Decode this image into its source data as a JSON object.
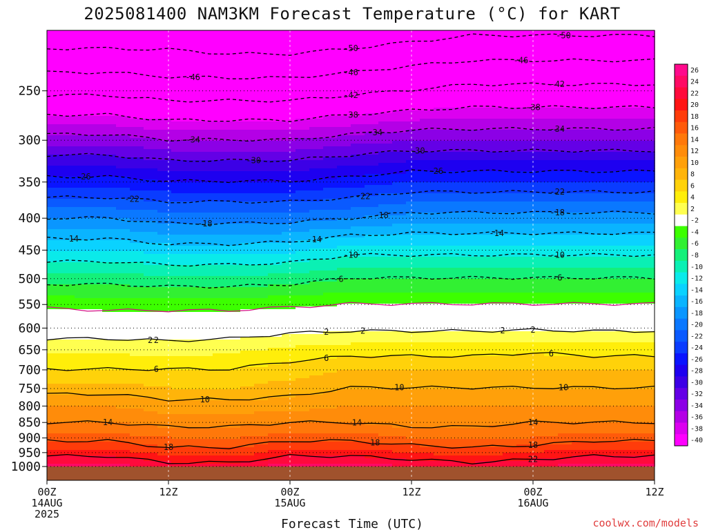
{
  "chart_data": {
    "type": "heatmap",
    "title": "2025081400 NAM3KM Forecast Temperature (°C) for KART",
    "xlabel": "Forecast Time (UTC)",
    "ylabel": "",
    "credit": "coolwx.com/models",
    "x_ticks": [
      {
        "hour": 0,
        "line1": "00Z",
        "line2": "14AUG",
        "line3": "2025"
      },
      {
        "hour": 12,
        "line1": "12Z",
        "line2": "",
        "line3": ""
      },
      {
        "hour": 24,
        "line1": "00Z",
        "line2": "15AUG",
        "line3": ""
      },
      {
        "hour": 36,
        "line1": "12Z",
        "line2": "",
        "line3": ""
      },
      {
        "hour": 48,
        "line1": "00Z",
        "line2": "16AUG",
        "line3": ""
      },
      {
        "hour": 60,
        "line1": "12Z",
        "line2": "",
        "line3": ""
      }
    ],
    "xlim_hours": [
      0,
      60
    ],
    "y_axis": "pressure (hPa), log scale, inverted",
    "ylim": [
      1000,
      200
    ],
    "y_ticks": [
      250,
      300,
      350,
      400,
      450,
      500,
      550,
      600,
      650,
      700,
      750,
      800,
      850,
      900,
      950,
      1000
    ],
    "grid": true,
    "colorbar_labels": [
      26,
      24,
      22,
      20,
      18,
      16,
      14,
      12,
      10,
      8,
      6,
      4,
      2,
      -2,
      -4,
      -6,
      -8,
      -10,
      -12,
      -14,
      -16,
      -18,
      -20,
      -22,
      -24,
      -26,
      -28,
      -30,
      -32,
      -34,
      -36,
      -38,
      -40
    ],
    "colorbar_colors": [
      "#ff0a8c",
      "#ff0a64",
      "#ff0a3c",
      "#ff1414",
      "#ff3c0a",
      "#ff5a0a",
      "#ff780a",
      "#ff8c0a",
      "#ffa00a",
      "#ffb40a",
      "#ffd20a",
      "#ffee0a",
      "#ffff50",
      "#ffffff",
      "#3cff00",
      "#32f032",
      "#14f07a",
      "#0af0b4",
      "#0aeaea",
      "#0ad2ff",
      "#0ab4ff",
      "#0a96ff",
      "#0a78ff",
      "#0a5aff",
      "#0a3cff",
      "#0a14ff",
      "#1e00f0",
      "#3c00e6",
      "#6400e6",
      "#8c00e6",
      "#b400e6",
      "#dc00f0",
      "#ff00ff"
    ],
    "levels": [
      {
        "p": 1000,
        "t": [
          25,
          25,
          23,
          23,
          25,
          25,
          24,
          23,
          24,
          25,
          25
        ]
      },
      {
        "p": 950,
        "t": [
          21,
          21,
          19,
          19,
          21,
          21,
          20,
          19,
          20,
          21,
          21
        ]
      },
      {
        "p": 900,
        "t": [
          17,
          17,
          16,
          16,
          17,
          17,
          16,
          16,
          16,
          17,
          17
        ]
      },
      {
        "p": 850,
        "t": [
          14,
          14,
          13,
          13,
          14,
          14,
          13,
          13,
          14,
          14,
          14
        ]
      },
      {
        "p": 800,
        "t": [
          12,
          12,
          11,
          11,
          11,
          12,
          12,
          12,
          12,
          12,
          12
        ]
      },
      {
        "p": 750,
        "t": [
          9,
          9,
          8,
          8,
          9,
          10,
          10,
          10,
          10,
          10,
          10
        ]
      },
      {
        "p": 700,
        "t": [
          6,
          6,
          6,
          6,
          7,
          8,
          8,
          8,
          8,
          8,
          8
        ]
      },
      {
        "p": 650,
        "t": [
          3.5,
          3.5,
          3,
          3.5,
          4.5,
          5,
          5,
          5,
          5.5,
          5,
          5
        ]
      },
      {
        "p": 600,
        "t": [
          0.5,
          0.5,
          0.5,
          0.5,
          1,
          1.5,
          1.5,
          1.5,
          1.5,
          1.5,
          1.5
        ]
      },
      {
        "p": 550,
        "t": [
          -2.5,
          -3,
          -3,
          -3,
          -2.5,
          -2,
          -2,
          -2,
          -2,
          -2,
          -2
        ]
      },
      {
        "p": 500,
        "t": [
          -7,
          -7,
          -7.5,
          -7.5,
          -7,
          -6,
          -6,
          -6,
          -6,
          -6,
          -6
        ]
      },
      {
        "p": 450,
        "t": [
          -12,
          -12,
          -13,
          -13,
          -12.5,
          -11,
          -11,
          -11,
          -11,
          -11,
          -11
        ]
      },
      {
        "p": 400,
        "t": [
          -18,
          -18,
          -19,
          -19,
          -19,
          -18,
          -17,
          -17,
          -17,
          -17,
          -17
        ]
      },
      {
        "p": 350,
        "t": [
          -25,
          -25,
          -26,
          -26,
          -26,
          -25,
          -24,
          -24,
          -24,
          -24,
          -24
        ]
      },
      {
        "p": 300,
        "t": [
          -33,
          -33,
          -34,
          -34,
          -34,
          -33,
          -32,
          -32,
          -32,
          -32,
          -32
        ]
      },
      {
        "p": 250,
        "t": [
          -43,
          -43,
          -44,
          -44,
          -44,
          -43,
          -42,
          -41,
          -41,
          -41,
          -41
        ]
      },
      {
        "p": 200,
        "t": [
          -53,
          -53,
          -53,
          -54,
          -54,
          -53,
          -52,
          -51,
          -51,
          -51,
          -51
        ]
      }
    ],
    "contour_labels": [
      "-54",
      "-50",
      "-50",
      "-46",
      "-46",
      "-46",
      "-42",
      "-42",
      "-38",
      "-38",
      "-34",
      "-34",
      "-34",
      "-30",
      "-30",
      "-26",
      "-26",
      "-22",
      "-22",
      "-22",
      "-18",
      "-18",
      "-18",
      "-14",
      "-14",
      "-14",
      "-10",
      "-10",
      "-6",
      "-6",
      "2",
      "2",
      "2",
      "2",
      "2",
      "2",
      "6",
      "6",
      "6",
      "10",
      "10",
      "10",
      "14",
      "14",
      "14",
      "18",
      "18",
      "18",
      "22"
    ],
    "terrain_color": "#a0522d"
  }
}
